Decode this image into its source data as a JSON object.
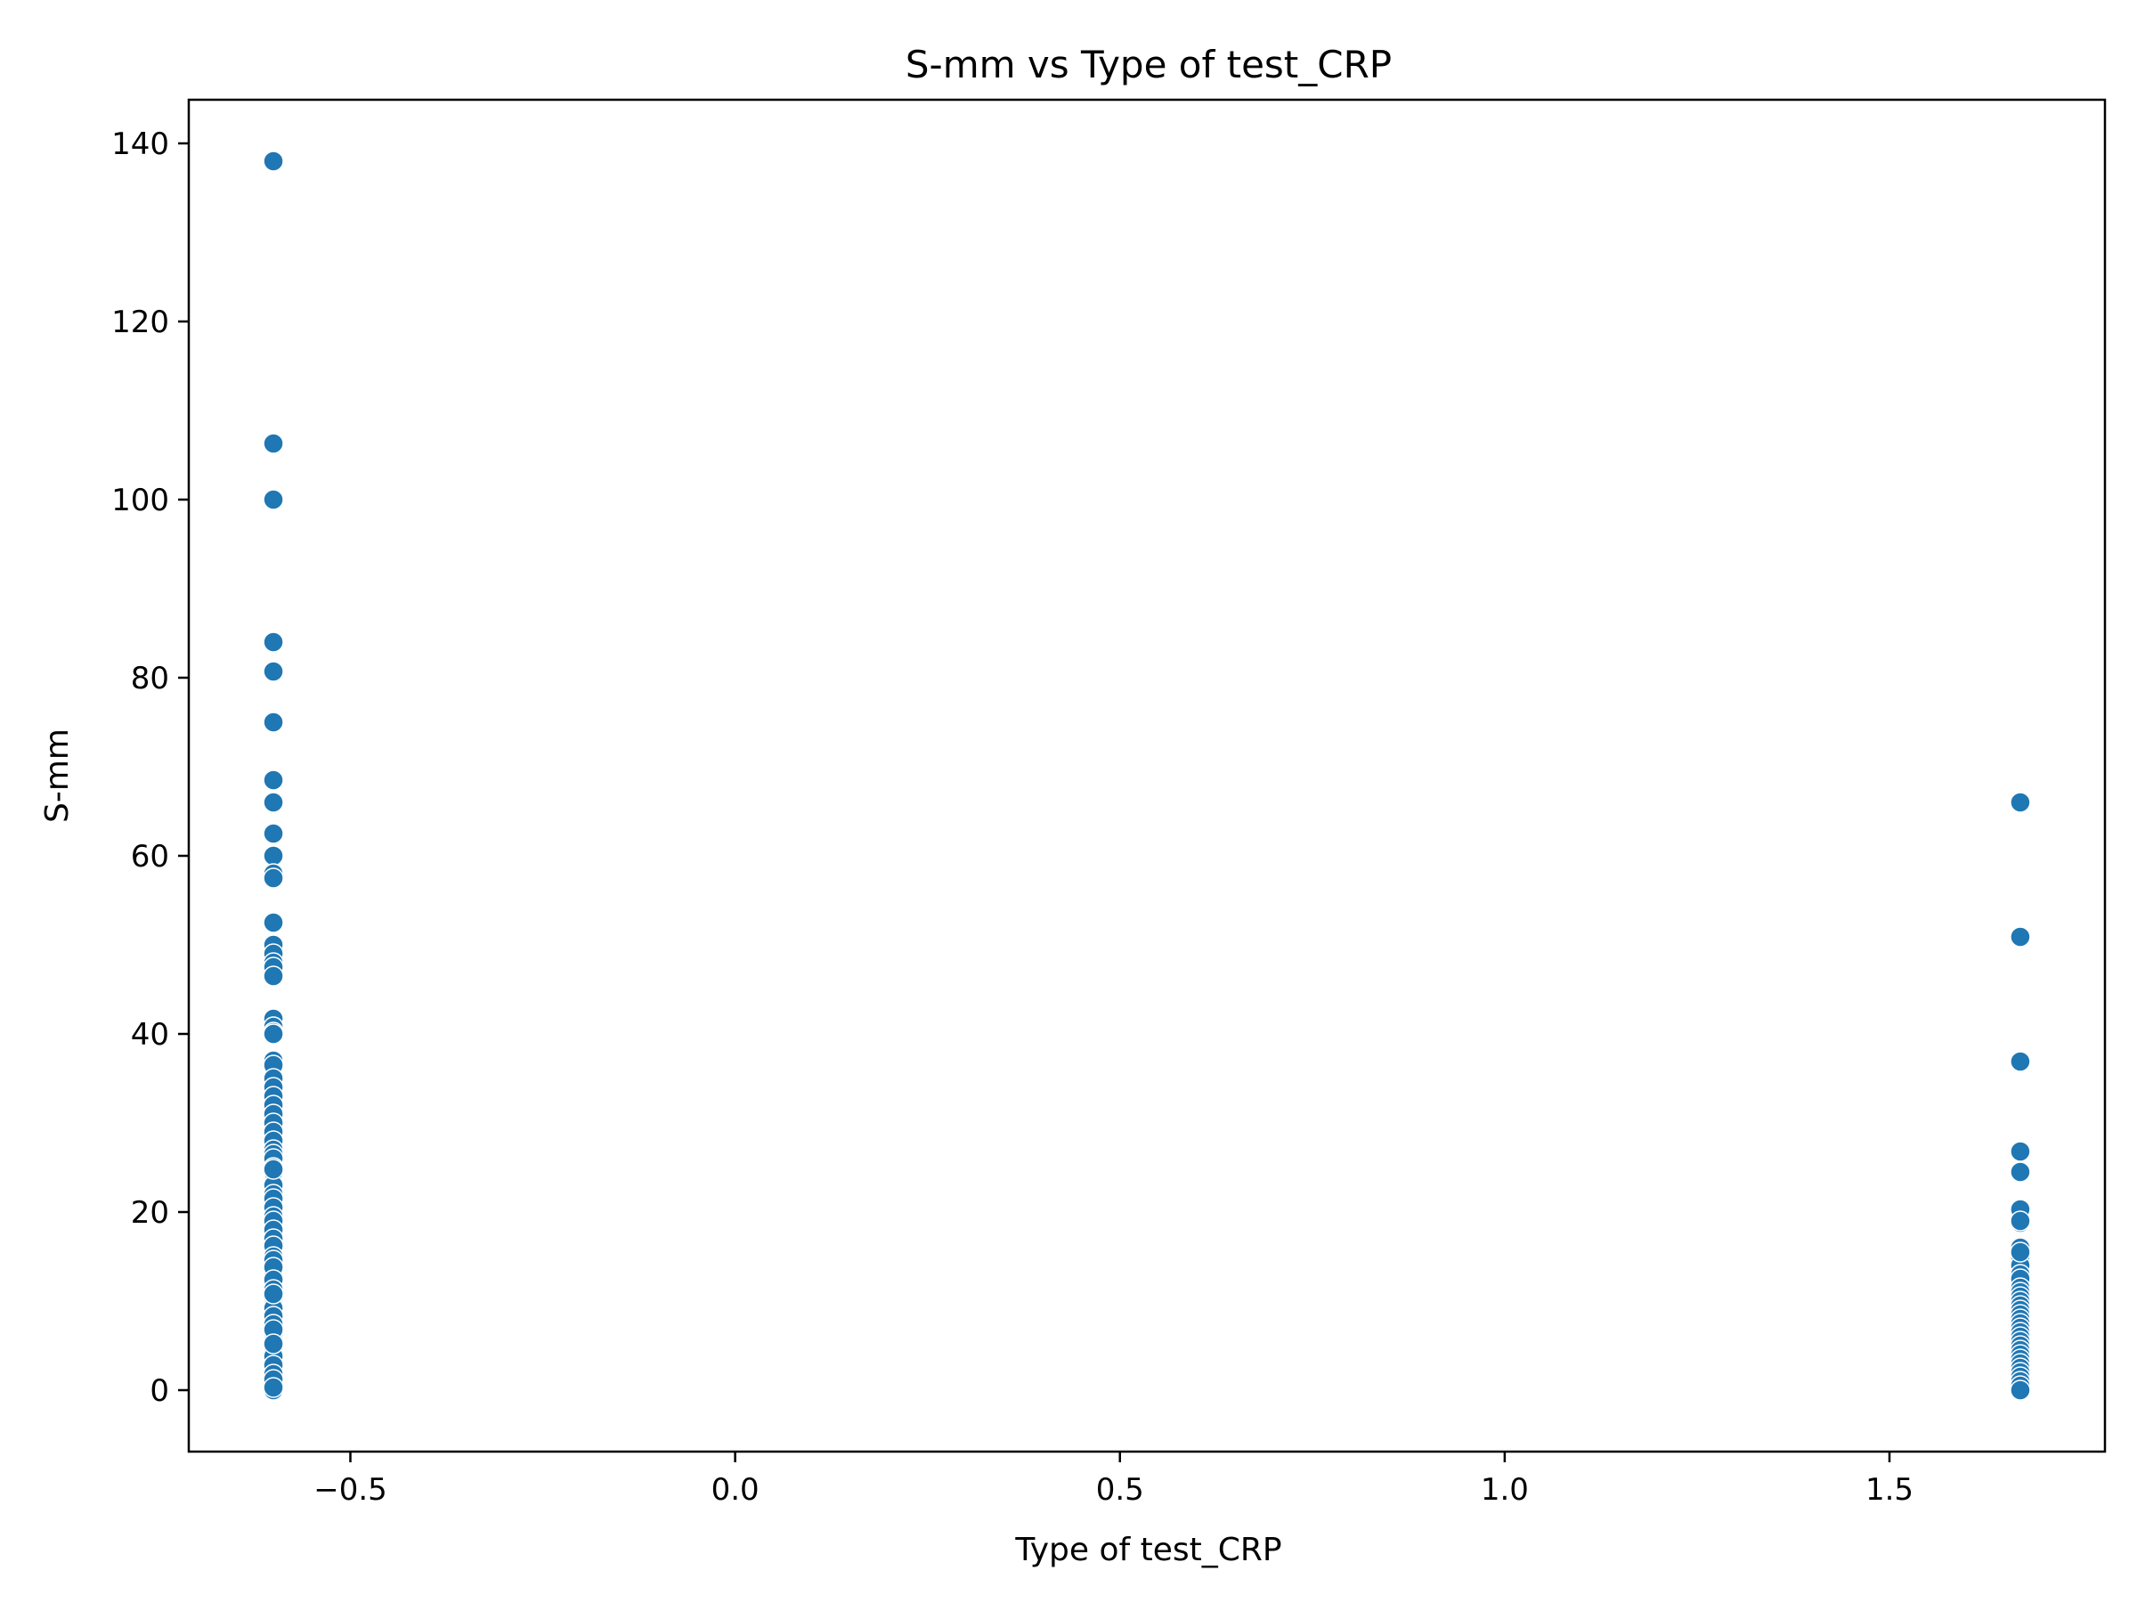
{
  "chart_data": {
    "type": "scatter",
    "title": "S-mm vs Type of test_CRP",
    "xlabel": "Type of test_CRP",
    "ylabel": "S-mm",
    "xlim": [
      -0.71,
      1.78
    ],
    "ylim": [
      -6.9,
      144.9
    ],
    "xticks": [
      -0.5,
      0.0,
      0.5,
      1.0,
      1.5
    ],
    "xtick_labels": [
      "−0.5",
      "0.0",
      "0.5",
      "1.0",
      "1.5"
    ],
    "yticks": [
      0,
      20,
      40,
      60,
      80,
      100,
      120,
      140
    ],
    "ytick_labels": [
      "0",
      "20",
      "40",
      "60",
      "80",
      "100",
      "120",
      "140"
    ],
    "grid": false,
    "legend": "none",
    "marker_color": "#1f77b4",
    "marker_edge_color": "#ffffff",
    "series": [
      {
        "x": [
          -0.6,
          -0.6,
          -0.6,
          -0.6,
          -0.6,
          -0.6,
          -0.6,
          -0.6,
          -0.6,
          -0.6,
          -0.6,
          -0.6,
          -0.6,
          -0.6,
          -0.6,
          -0.6,
          -0.6,
          -0.6,
          -0.6,
          -0.6,
          -0.6,
          -0.6,
          -0.6,
          -0.6,
          -0.6,
          -0.6,
          -0.6,
          -0.6,
          -0.6,
          -0.6,
          -0.6,
          -0.6,
          -0.6,
          -0.6,
          -0.6,
          -0.6,
          -0.6,
          -0.6,
          -0.6,
          -0.6,
          -0.6,
          -0.6,
          -0.6,
          -0.6,
          -0.6,
          -0.6,
          -0.6,
          -0.6,
          -0.6,
          -0.6,
          -0.6,
          -0.6,
          -0.6,
          -0.6,
          -0.6,
          -0.6,
          -0.6,
          -0.6,
          -0.6,
          -0.6,
          -0.6,
          -0.6,
          -0.6,
          -0.6,
          -0.6,
          -0.6,
          -0.6,
          -0.6,
          -0.6,
          -0.6,
          -0.6,
          -0.6,
          -0.6,
          -0.6,
          -0.6,
          -0.6,
          -0.6,
          -0.6,
          -0.6,
          -0.6,
          -0.6,
          -0.6,
          -0.6,
          -0.6,
          -0.6,
          -0.6,
          -0.6,
          -0.6,
          -0.6,
          -0.6,
          -0.6,
          -0.6,
          1.67,
          1.67,
          1.67,
          1.67,
          1.67,
          1.67,
          1.67,
          1.67,
          1.67,
          1.67,
          1.67,
          1.67,
          1.67,
          1.67,
          1.67,
          1.67,
          1.67,
          1.67,
          1.67,
          1.67,
          1.67,
          1.67,
          1.67,
          1.67,
          1.67,
          1.67,
          1.67,
          1.67,
          1.67,
          1.67,
          1.67,
          1.67,
          1.67,
          1.67,
          1.67,
          1.67,
          1.67,
          1.67
        ],
        "y": [
          138.0,
          106.3,
          100.0,
          84.0,
          80.7,
          75.0,
          68.5,
          66.0,
          62.5,
          60.0,
          58.0,
          57.5,
          52.5,
          50.0,
          49.0,
          48.0,
          47.5,
          46.5,
          41.7,
          40.8,
          40.2,
          40.0,
          37.0,
          36.5,
          35.0,
          34.0,
          33.0,
          32.0,
          31.0,
          30.0,
          29.0,
          28.0,
          27.0,
          26.5,
          26.0,
          25.0,
          24.5,
          23.0,
          22.0,
          21.5,
          20.5,
          19.5,
          19.0,
          18.0,
          17.0,
          16.2,
          15.0,
          14.0,
          13.3,
          12.8,
          12.0,
          11.5,
          11.0,
          10.5,
          10.0,
          9.5,
          9.0,
          8.5,
          8.0,
          7.5,
          7.0,
          6.5,
          6.0,
          5.5,
          5.0,
          4.5,
          4.0,
          3.5,
          3.0,
          2.5,
          2.0,
          1.5,
          1.0,
          0.5,
          0.0,
          9.2,
          8.3,
          7.4,
          4.8,
          3.8,
          2.8,
          1.8,
          1.2,
          0.3,
          14.6,
          13.8,
          12.4,
          11.3,
          10.8,
          6.8,
          5.2,
          24.8,
          66.0,
          50.9,
          36.9,
          26.8,
          24.5,
          20.3,
          18.8,
          16.0,
          15.0,
          14.0,
          13.0,
          12.5,
          11.5,
          11.0,
          10.5,
          10.0,
          9.5,
          9.0,
          8.5,
          8.0,
          7.5,
          7.0,
          6.5,
          6.0,
          5.5,
          5.0,
          4.5,
          4.0,
          3.5,
          3.0,
          2.5,
          2.0,
          1.5,
          1.0,
          0.5,
          0.0,
          19.0,
          15.5
        ]
      }
    ]
  }
}
